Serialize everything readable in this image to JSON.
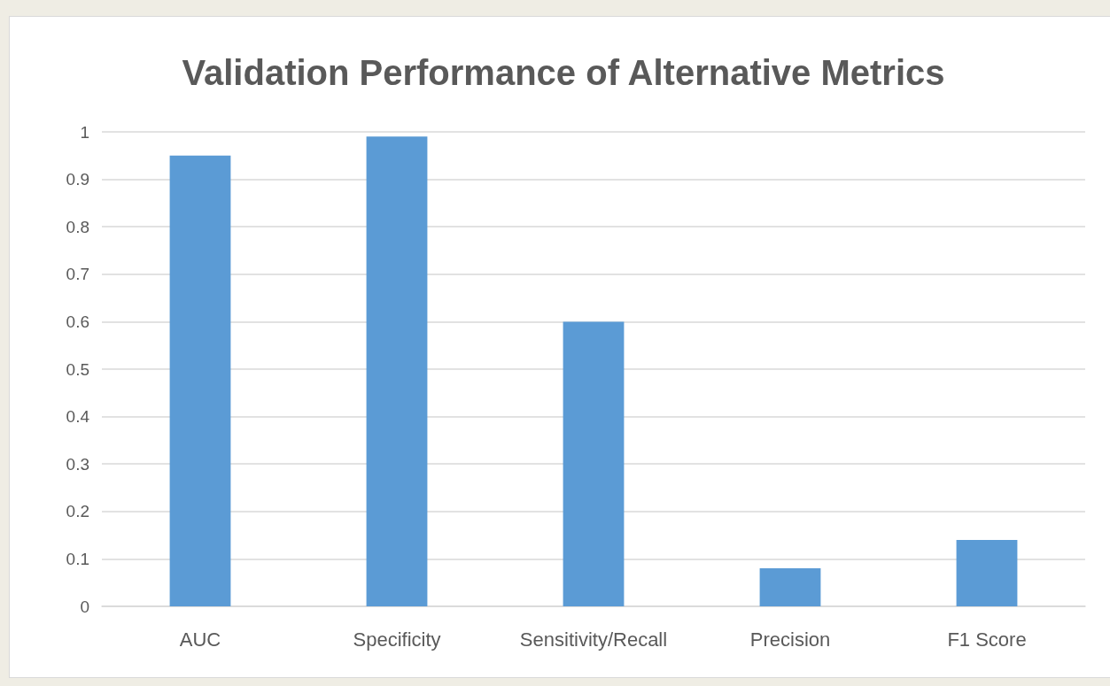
{
  "chart_data": {
    "type": "bar",
    "title": "Validation Performance of Alternative Metrics",
    "categories": [
      "AUC",
      "Specificity",
      "Sensitivity/Recall",
      "Precision",
      "F1 Score"
    ],
    "values": [
      0.95,
      0.99,
      0.6,
      0.08,
      0.14
    ],
    "color": "#5b9bd5",
    "ylim": [
      0,
      1
    ],
    "yticks": [
      0,
      0.1,
      0.2,
      0.3,
      0.4,
      0.5,
      0.6,
      0.7,
      0.8,
      0.9,
      1
    ],
    "grid": "y"
  }
}
